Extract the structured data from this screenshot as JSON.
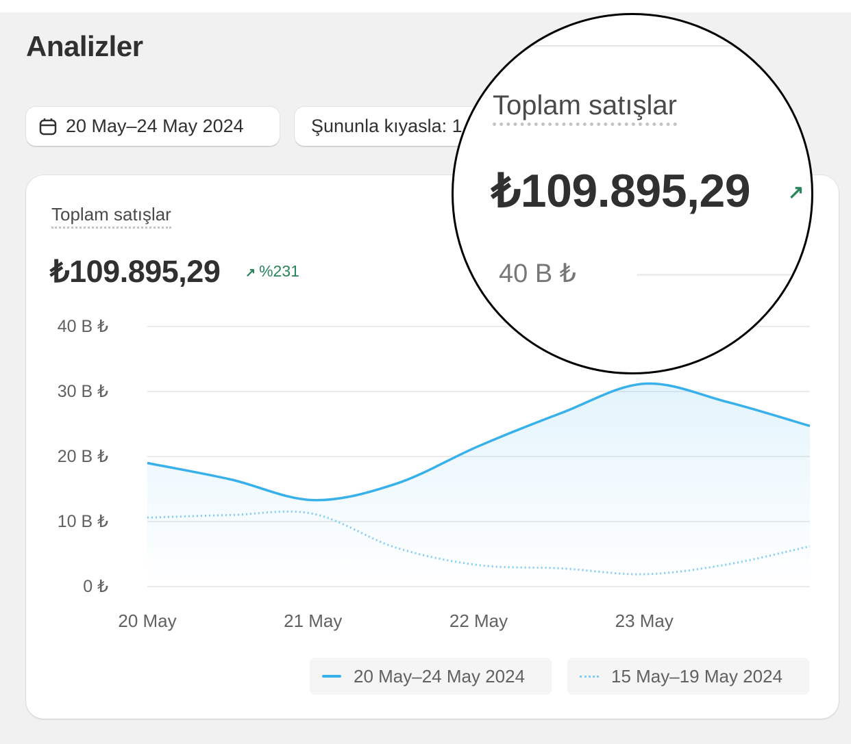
{
  "page": {
    "title": "Analizler"
  },
  "toolbar": {
    "date_range": "20 May–24 May 2024",
    "compare_label": "Şununla kıyasla: 1"
  },
  "card": {
    "metric_label": "Toplam satışlar",
    "metric_value": "₺109.895,29",
    "delta": "%231"
  },
  "colors": {
    "primary": "#38b0ea",
    "comparison": "#7fcdf2",
    "positive": "#29845a"
  },
  "chart_data": {
    "type": "line",
    "x": [
      20,
      20.5,
      21,
      21.5,
      22,
      22.5,
      23,
      23.5,
      24
    ],
    "x_tick_labels": [
      "20 May",
      "21 May",
      "22 May",
      "23 May"
    ],
    "y_tick_labels": [
      "0 ₺",
      "10 B ₺",
      "20 B ₺",
      "30 B ₺",
      "40 B ₺"
    ],
    "y_ticks": [
      0,
      10,
      20,
      30,
      40
    ],
    "ylim": [
      0,
      40
    ],
    "xlim": [
      20,
      24
    ],
    "grid": true,
    "series": [
      {
        "name": "20 May–24 May 2024",
        "style": "solid",
        "values": [
          19.0,
          16.5,
          13.3,
          15.8,
          21.6,
          26.7,
          31.2,
          28.4,
          24.7
        ]
      },
      {
        "name": "15 May–19 May 2024",
        "style": "dotted",
        "values": [
          10.6,
          11.0,
          11.2,
          6.0,
          3.3,
          2.8,
          1.9,
          3.4,
          6.2
        ]
      }
    ],
    "legend_position": "bottom-right"
  },
  "magnifier": {
    "y_tick": "40 B ₺"
  }
}
